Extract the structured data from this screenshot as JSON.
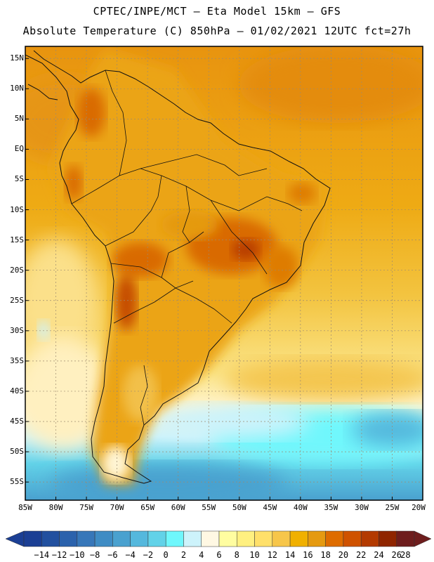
{
  "header": {
    "line1": "CPTEC/INPE/MCT –  Eta Model 15km – GFS",
    "line2": "Absolute Temperature (C) 850hPa – 01/02/2021 12UTC fct=27h"
  },
  "map": {
    "lat_labels": [
      "15N",
      "10N",
      "5N",
      "EQ",
      "5S",
      "10S",
      "15S",
      "20S",
      "25S",
      "30S",
      "35S",
      "40S",
      "45S",
      "50S",
      "55S"
    ],
    "lon_labels": [
      "85W",
      "80W",
      "75W",
      "70W",
      "65W",
      "60W",
      "55W",
      "50W",
      "45W",
      "40W",
      "35W",
      "30W",
      "25W",
      "20W"
    ],
    "lat_range": [
      17,
      -58
    ],
    "lon_range": [
      -85,
      -20
    ]
  },
  "colorbar": {
    "labels": [
      "-14",
      "-12",
      "-10",
      "-8",
      "-6",
      "-4",
      "-2",
      "0",
      "2",
      "4",
      "6",
      "8",
      "10",
      "12",
      "14",
      "16",
      "18",
      "20",
      "22",
      "24",
      "26",
      "28"
    ],
    "colors": [
      "#1b3f94",
      "#22509f",
      "#2b62ac",
      "#3777b9",
      "#3f8cc4",
      "#4aa1cf",
      "#55b8dd",
      "#62d2e8",
      "#6ff7fc",
      "#cdf3fb",
      "#fff8e3",
      "#fffda0",
      "#fff080",
      "#ffe06a",
      "#f7c64a",
      "#f0b000",
      "#e59a10",
      "#de6c00",
      "#cf5200",
      "#b33a00",
      "#8f2500",
      "#6e1d1d"
    ]
  }
}
